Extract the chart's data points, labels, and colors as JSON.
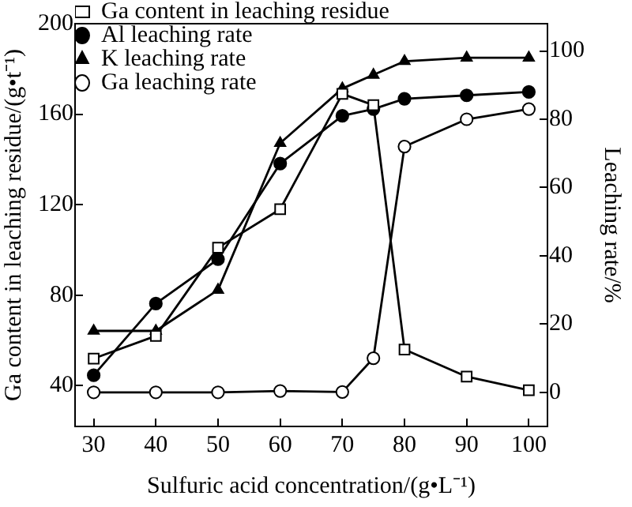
{
  "chart_data": {
    "type": "line",
    "xlabel": "Sulfuric acid concentration/(g•L⁻¹)",
    "ylabel": "Ga content in leaching residue/(g•t⁻¹)",
    "y2label": "Leaching rate/%",
    "x": [
      30,
      40,
      50,
      60,
      70,
      75,
      80,
      90,
      100
    ],
    "xlim": [
      27,
      103
    ],
    "xticks": [
      30,
      40,
      50,
      60,
      70,
      80,
      90,
      100
    ],
    "ylim": [
      22,
      200
    ],
    "yticks": [
      40,
      80,
      120,
      160,
      200
    ],
    "y2lim": [
      -10,
      108
    ],
    "y2ticks": [
      0,
      20,
      40,
      60,
      80,
      100
    ],
    "series": [
      {
        "name": "Ga content in leaching residue",
        "color": "#000000",
        "marker": "square",
        "values": [
          52,
          62,
          101,
          118,
          169,
          164,
          56,
          44,
          38
        ]
      },
      {
        "name": "Al leaching rate",
        "color": "#000000",
        "marker": "circle",
        "axis": "y2",
        "values": [
          5,
          26,
          39,
          67,
          81,
          83,
          86,
          87,
          88
        ]
      },
      {
        "name": "K leaching rate",
        "color": "#000000",
        "marker": "triangle",
        "axis": "y2",
        "values": [
          18,
          18,
          30,
          73,
          89,
          93,
          97,
          98,
          98
        ]
      },
      {
        "name": "Ga leaching rate",
        "color": "#000000",
        "marker": "circle",
        "axis": "y2",
        "values": [
          0,
          0,
          0,
          0.4,
          0.1,
          10,
          72,
          80,
          83
        ]
      }
    ],
    "legend": "top left",
    "grid": false,
    "line_style": "solid"
  }
}
